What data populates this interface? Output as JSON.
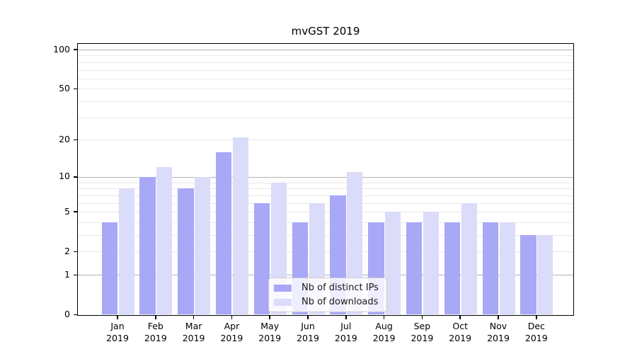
{
  "title": "mvGST 2019",
  "chart_data": {
    "type": "bar",
    "title": "mvGST 2019",
    "categories": [
      "Jan 2019",
      "Feb 2019",
      "Mar 2019",
      "Apr 2019",
      "May 2019",
      "Jun 2019",
      "Jul 2019",
      "Aug 2019",
      "Sep 2019",
      "Oct 2019",
      "Nov 2019",
      "Dec 2019"
    ],
    "series": [
      {
        "name": "Nb of distinct IPs",
        "color": "#a8a8f7",
        "values": [
          4,
          10,
          8,
          16,
          6,
          4,
          7,
          4,
          4,
          4,
          4,
          3
        ]
      },
      {
        "name": "Nb of downloads",
        "color": "#dbdbfa",
        "values": [
          8,
          12,
          10,
          21,
          9,
          6,
          11,
          5,
          5,
          6,
          4,
          3
        ]
      }
    ],
    "xlabel": "",
    "ylabel": "",
    "yscale": "log1p",
    "ylim": [
      0,
      110
    ],
    "yticks": [
      0,
      1,
      2,
      5,
      10,
      20,
      50,
      100
    ],
    "major_gridlines": [
      1,
      10,
      100
    ],
    "minor_gridlines": [
      2,
      3,
      4,
      5,
      6,
      7,
      8,
      9,
      20,
      30,
      40,
      50,
      60,
      70,
      80,
      90
    ],
    "grid": true,
    "legend_position": "inside lower-center"
  },
  "colors": {
    "bar_dark": "#a8a8f7",
    "bar_light": "#dbdbfa",
    "major_grid": "#b3b3b3",
    "minor_grid": "#e8e8e8",
    "spine": "#000000",
    "legend_border": "#cccccc",
    "tick_text": "#000000"
  }
}
